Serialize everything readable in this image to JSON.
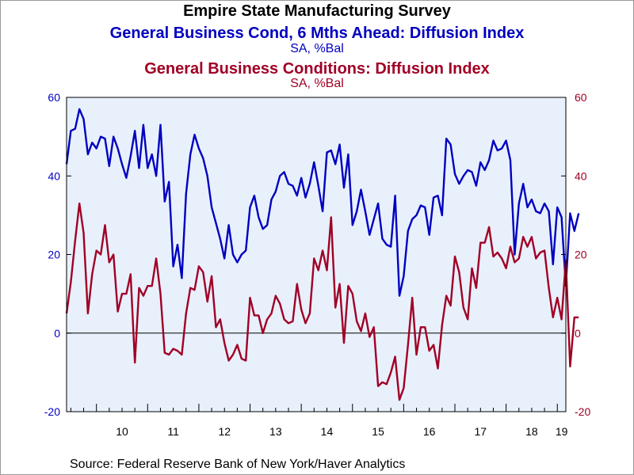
{
  "chart_data": {
    "type": "line",
    "title": "Empire State Manufacturing Survey",
    "series": [
      {
        "name": "General Business Cond, 6 Mths Ahead: Diffusion Index",
        "unit": "SA, %Bal",
        "color": "#0000c0",
        "axis": "left",
        "values": [
          43.0,
          51.5,
          52.0,
          57.0,
          54.5,
          45.5,
          48.5,
          47.0,
          50.0,
          49.5,
          42.5,
          50.0,
          47.0,
          43.0,
          39.5,
          45.0,
          51.5,
          42.0,
          53.0,
          42.0,
          45.5,
          40.0,
          53.0,
          33.5,
          38.5,
          17.0,
          22.5,
          14.0,
          35.5,
          45.5,
          50.5,
          47.0,
          44.5,
          40.0,
          32.0,
          28.0,
          24.0,
          19.0,
          27.5,
          20.0,
          18.0,
          20.0,
          21.0,
          32.0,
          35.0,
          29.5,
          26.5,
          27.5,
          34.0,
          36.0,
          40.0,
          41.0,
          38.0,
          37.5,
          35.0,
          39.5,
          34.5,
          38.0,
          43.5,
          37.5,
          31.0,
          46.0,
          46.5,
          43.0,
          48.0,
          37.0,
          45.5,
          27.5,
          31.0,
          36.5,
          31.0,
          25.0,
          29.0,
          33.0,
          24.0,
          22.5,
          22.0,
          35.0,
          9.5,
          14.5,
          26.0,
          29.0,
          30.0,
          32.5,
          32.0,
          25.0,
          34.5,
          35.0,
          30.0,
          49.5,
          48.0,
          40.5,
          38.0,
          40.0,
          41.5,
          41.0,
          37.5,
          43.5,
          41.5,
          44.0,
          49.0,
          46.5,
          47.0,
          49.0,
          44.0,
          20.0,
          33.0,
          38.0,
          32.0,
          34.0,
          31.0,
          30.5,
          33.0,
          31.0,
          17.5,
          32.0,
          29.5,
          12.0,
          30.5,
          26.0,
          30.5
        ],
        "legend": false
      },
      {
        "name": "General Business Conditions: Diffusion Index",
        "unit": "SA, %Bal",
        "color": "#a00025",
        "axis": "right",
        "values": [
          5.0,
          13.0,
          23.5,
          33.0,
          25.5,
          5.0,
          15.0,
          21.0,
          20.0,
          27.5,
          18.0,
          20.0,
          5.5,
          10.0,
          10.0,
          15.0,
          -7.5,
          11.5,
          9.5,
          12.0,
          12.0,
          19.0,
          10.0,
          -5.0,
          -5.5,
          -4.0,
          -4.5,
          -5.5,
          5.0,
          11.5,
          11.0,
          17.0,
          15.5,
          8.0,
          14.5,
          1.5,
          3.5,
          -2.5,
          -7.0,
          -5.5,
          -3.0,
          -6.5,
          -7.0,
          9.0,
          4.5,
          4.5,
          0.0,
          3.5,
          5.0,
          9.5,
          7.5,
          3.5,
          2.5,
          3.0,
          12.5,
          6.0,
          2.5,
          5.0,
          19.0,
          16.0,
          21.0,
          16.0,
          29.5,
          6.5,
          12.5,
          -2.5,
          12.0,
          10.0,
          3.0,
          0.5,
          5.0,
          -1.0,
          1.5,
          -13.5,
          -12.5,
          -13.0,
          -10.0,
          -6.0,
          -17.0,
          -14.0,
          -3.0,
          9.0,
          -5.5,
          1.5,
          1.5,
          -4.5,
          -3.0,
          -9.0,
          2.0,
          9.5,
          7.0,
          19.5,
          15.5,
          6.5,
          3.5,
          16.5,
          11.5,
          23.0,
          23.0,
          27.0,
          19.5,
          20.5,
          19.0,
          16.5,
          22.0,
          18.0,
          19.0,
          24.5,
          22.0,
          24.5,
          19.0,
          20.5,
          21.0,
          11.5,
          4.0,
          9.0,
          3.5,
          18.5,
          -8.5,
          4.0,
          4.0
        ],
        "legend": false
      }
    ],
    "x": {
      "start": "2009-06",
      "frequency": "monthly",
      "tick_labels": [
        "10",
        "11",
        "12",
        "13",
        "14",
        "15",
        "16",
        "17",
        "18",
        "19"
      ],
      "xlim": [
        "2009-06",
        "2019-03"
      ]
    },
    "left_axis": {
      "ylim": [
        -20,
        60
      ],
      "ticks": [
        "-20",
        "0",
        "20",
        "40",
        "60"
      ],
      "color": "#0000c0"
    },
    "right_axis": {
      "ylim": [
        -20,
        60
      ],
      "ticks": [
        "-20",
        "0",
        "20",
        "40",
        "60"
      ],
      "color": "#a00025"
    },
    "zero_line": true,
    "grid": false,
    "plot_background": "#e8f0fc"
  },
  "source_text": "Source:  Federal Reserve Bank of New York/Haver Analytics"
}
